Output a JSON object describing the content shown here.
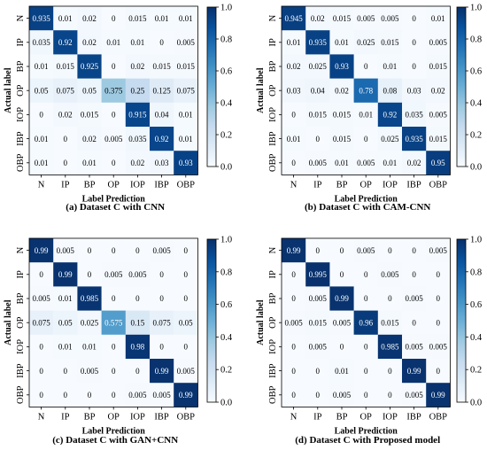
{
  "chart_data": [
    {
      "type": "heatmap",
      "title": "(a) Dataset C with CNN",
      "xlabel": "Label Prediction",
      "ylabel": "Actual label",
      "categories": [
        "N",
        "IP",
        "BP",
        "OP",
        "IOP",
        "IBP",
        "OBP"
      ],
      "colorbar": {
        "ticks": [
          "0.0",
          "0.2",
          "0.4",
          "0.6",
          "0.8",
          "1.0"
        ],
        "range": [
          0,
          1
        ]
      },
      "values": [
        [
          "0.935",
          "0.01",
          "0.02",
          "0",
          "0.015",
          "0.01",
          "0.01"
        ],
        [
          "0.035",
          "0.92",
          "0.02",
          "0.01",
          "0.01",
          "0",
          "0.005"
        ],
        [
          "0.01",
          "0.015",
          "0.925",
          "0",
          "0.02",
          "0.015",
          "0.015"
        ],
        [
          "0.05",
          "0.075",
          "0.05",
          "0.375",
          "0.25",
          "0.125",
          "0.075"
        ],
        [
          "0",
          "0.02",
          "0.015",
          "0",
          "0.915",
          "0.04",
          "0.01"
        ],
        [
          "0.01",
          "0",
          "0.02",
          "0.005",
          "0.035",
          "0.92",
          "0.01"
        ],
        [
          "0.01",
          "0",
          "0.01",
          "0",
          "0.02",
          "0.03",
          "0.93"
        ]
      ]
    },
    {
      "type": "heatmap",
      "title": "(b) Dataset C with CAM-CNN",
      "xlabel": "Label Prediction",
      "ylabel": "Actual label",
      "categories": [
        "N",
        "IP",
        "BP",
        "OP",
        "IOP",
        "IBP",
        "OBP"
      ],
      "colorbar": {
        "ticks": [
          "0.0",
          "0.2",
          "0.4",
          "0.6",
          "0.8",
          "1.0"
        ],
        "range": [
          0,
          1
        ]
      },
      "values": [
        [
          "0.945",
          "0.02",
          "0.015",
          "0.005",
          "0.005",
          "0",
          "0.01"
        ],
        [
          "0.01",
          "0.935",
          "0.01",
          "0.025",
          "0.015",
          "0",
          "0.005"
        ],
        [
          "0.02",
          "0.025",
          "0.93",
          "0",
          "0.01",
          "0",
          "0.015"
        ],
        [
          "0.03",
          "0.04",
          "0.02",
          "0.78",
          "0.08",
          "0.03",
          "0.02"
        ],
        [
          "0",
          "0.015",
          "0.015",
          "0.01",
          "0.92",
          "0.035",
          "0.005"
        ],
        [
          "0.01",
          "0",
          "0.015",
          "0",
          "0.025",
          "0.935",
          "0.015"
        ],
        [
          "0",
          "0.005",
          "0.01",
          "0.005",
          "0.01",
          "0.02",
          "0.95"
        ]
      ]
    },
    {
      "type": "heatmap",
      "title": "(c) Dataset C with GAN+CNN",
      "xlabel": "Label Prediction",
      "ylabel": "Actual label",
      "categories": [
        "N",
        "IP",
        "BP",
        "OP",
        "IOP",
        "IBP",
        "OBP"
      ],
      "colorbar": {
        "ticks": [
          "0.0",
          "0.2",
          "0.4",
          "0.6",
          "0.8",
          "1.0"
        ],
        "range": [
          0,
          1
        ]
      },
      "values": [
        [
          "0.99",
          "0.005",
          "0",
          "0",
          "0",
          "0.005",
          "0"
        ],
        [
          "0",
          "0.99",
          "0",
          "0.005",
          "0.005",
          "0",
          "0"
        ],
        [
          "0.005",
          "0.01",
          "0.985",
          "0",
          "0",
          "0",
          "0"
        ],
        [
          "0.075",
          "0.05",
          "0.025",
          "0.575",
          "0.15",
          "0.075",
          "0.05"
        ],
        [
          "0",
          "0.01",
          "0.01",
          "0",
          "0.98",
          "0",
          "0"
        ],
        [
          "0",
          "0",
          "0.005",
          "0",
          "0",
          "0.99",
          "0.005"
        ],
        [
          "0",
          "0",
          "0",
          "0",
          "0.005",
          "0.005",
          "0.99"
        ]
      ]
    },
    {
      "type": "heatmap",
      "title": "(d) Dataset C with Proposed model",
      "xlabel": "Label Prediction",
      "ylabel": "Actual label",
      "categories": [
        "N",
        "IP",
        "BP",
        "OP",
        "IOP",
        "IBP",
        "OBP"
      ],
      "colorbar": {
        "ticks": [
          "0.0",
          "0.2",
          "0.4",
          "0.6",
          "0.8",
          "1.0"
        ],
        "range": [
          0,
          1
        ]
      },
      "values": [
        [
          "0.99",
          "0",
          "0",
          "0.005",
          "0",
          "0",
          "0.005"
        ],
        [
          "0",
          "0.995",
          "0",
          "0",
          "0.005",
          "0",
          "0"
        ],
        [
          "0",
          "0.005",
          "0.99",
          "0",
          "0",
          "0.005",
          "0"
        ],
        [
          "0.005",
          "0.015",
          "0.005",
          "0.96",
          "0.015",
          "0",
          "0"
        ],
        [
          "0",
          "0.005",
          "0",
          "0",
          "0.985",
          "0.005",
          "0.005"
        ],
        [
          "0",
          "0",
          "0.01",
          "0",
          "0",
          "0.99",
          "0"
        ],
        [
          "0",
          "0",
          "0.005",
          "0",
          "0",
          "0.005",
          "0.99"
        ]
      ]
    }
  ]
}
